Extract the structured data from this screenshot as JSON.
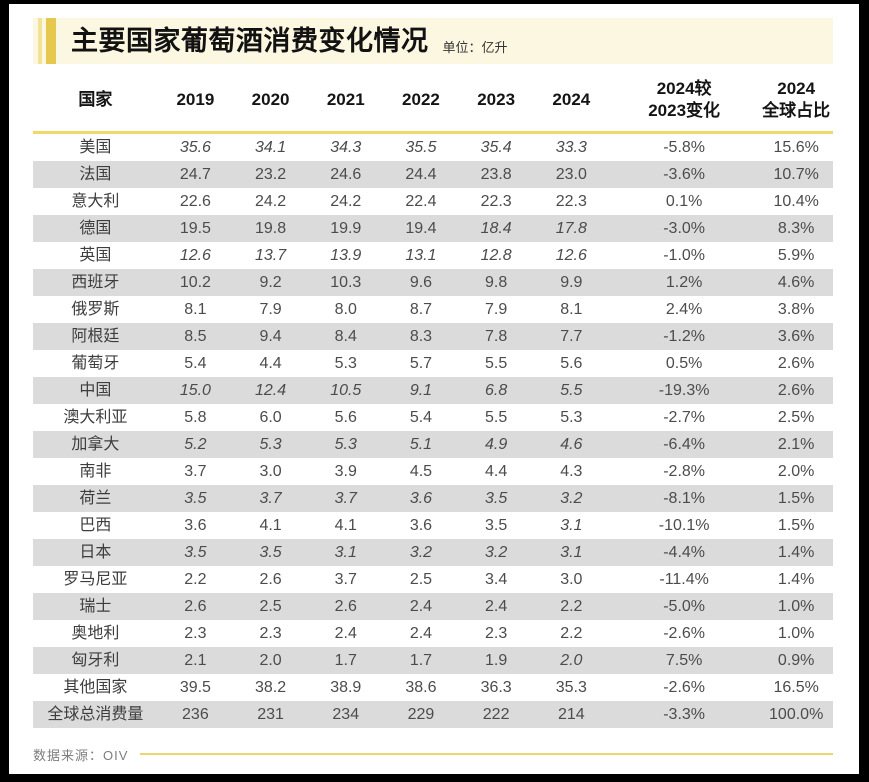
{
  "colors": {
    "frame": "#000000",
    "title_background": "#fcf7e1",
    "accent_gold": "#e7c84e",
    "accent_light": "#f2e296",
    "header_rule_yellow": "#f1d968",
    "row_stripe_gray": "#dbdbdb",
    "body_text": "#4c4c4c",
    "footer_rule_yellow": "#eed46c"
  },
  "chart_data": {
    "type": "table",
    "title": "主要国家葡萄酒消费变化情况",
    "unit": "单位：亿升",
    "source": "数据来源：OIV",
    "columns": [
      "国家",
      "2019",
      "2020",
      "2021",
      "2022",
      "2023",
      "2024",
      "2024较\n2023变化",
      "2024\n全球占比"
    ],
    "rows": [
      {
        "country": "美国",
        "values": [
          "35.6",
          "34.1",
          "34.3",
          "35.5",
          "35.4",
          "33.3"
        ],
        "italic": [
          true,
          true,
          true,
          true,
          true,
          true
        ],
        "change": "-5.8%",
        "share": "15.6%"
      },
      {
        "country": "法国",
        "values": [
          "24.7",
          "23.2",
          "24.6",
          "24.4",
          "23.8",
          "23.0"
        ],
        "italic": [
          false,
          false,
          false,
          false,
          false,
          false
        ],
        "change": "-3.6%",
        "share": "10.7%"
      },
      {
        "country": "意大利",
        "values": [
          "22.6",
          "24.2",
          "24.2",
          "22.4",
          "22.3",
          "22.3"
        ],
        "italic": [
          false,
          false,
          false,
          false,
          false,
          false
        ],
        "change": "0.1%",
        "share": "10.4%"
      },
      {
        "country": "德国",
        "values": [
          "19.5",
          "19.8",
          "19.9",
          "19.4",
          "18.4",
          "17.8"
        ],
        "italic": [
          false,
          false,
          false,
          false,
          true,
          true
        ],
        "change": "-3.0%",
        "share": "8.3%"
      },
      {
        "country": "英国",
        "values": [
          "12.6",
          "13.7",
          "13.9",
          "13.1",
          "12.8",
          "12.6"
        ],
        "italic": [
          true,
          true,
          true,
          true,
          true,
          true
        ],
        "change": "-1.0%",
        "share": "5.9%"
      },
      {
        "country": "西班牙",
        "values": [
          "10.2",
          "9.2",
          "10.3",
          "9.6",
          "9.8",
          "9.9"
        ],
        "italic": [
          false,
          false,
          false,
          false,
          false,
          false
        ],
        "change": "1.2%",
        "share": "4.6%"
      },
      {
        "country": "俄罗斯",
        "values": [
          "8.1",
          "7.9",
          "8.0",
          "8.7",
          "7.9",
          "8.1"
        ],
        "italic": [
          false,
          false,
          false,
          false,
          false,
          false
        ],
        "change": "2.4%",
        "share": "3.8%"
      },
      {
        "country": "阿根廷",
        "values": [
          "8.5",
          "9.4",
          "8.4",
          "8.3",
          "7.8",
          "7.7"
        ],
        "italic": [
          false,
          false,
          false,
          false,
          false,
          false
        ],
        "change": "-1.2%",
        "share": "3.6%"
      },
      {
        "country": "葡萄牙",
        "values": [
          "5.4",
          "4.4",
          "5.3",
          "5.7",
          "5.5",
          "5.6"
        ],
        "italic": [
          false,
          false,
          false,
          false,
          false,
          false
        ],
        "change": "0.5%",
        "share": "2.6%"
      },
      {
        "country": "中国",
        "values": [
          "15.0",
          "12.4",
          "10.5",
          "9.1",
          "6.8",
          "5.5"
        ],
        "italic": [
          true,
          true,
          true,
          true,
          true,
          true
        ],
        "change": "-19.3%",
        "share": "2.6%"
      },
      {
        "country": "澳大利亚",
        "values": [
          "5.8",
          "6.0",
          "5.6",
          "5.4",
          "5.5",
          "5.3"
        ],
        "italic": [
          false,
          false,
          false,
          false,
          false,
          false
        ],
        "change": "-2.7%",
        "share": "2.5%"
      },
      {
        "country": "加拿大",
        "values": [
          "5.2",
          "5.3",
          "5.3",
          "5.1",
          "4.9",
          "4.6"
        ],
        "italic": [
          true,
          true,
          true,
          true,
          true,
          true
        ],
        "change": "-6.4%",
        "share": "2.1%"
      },
      {
        "country": "南非",
        "values": [
          "3.7",
          "3.0",
          "3.9",
          "4.5",
          "4.4",
          "4.3"
        ],
        "italic": [
          false,
          false,
          false,
          false,
          false,
          false
        ],
        "change": "-2.8%",
        "share": "2.0%"
      },
      {
        "country": "荷兰",
        "values": [
          "3.5",
          "3.7",
          "3.7",
          "3.6",
          "3.5",
          "3.2"
        ],
        "italic": [
          true,
          true,
          true,
          true,
          true,
          true
        ],
        "change": "-8.1%",
        "share": "1.5%"
      },
      {
        "country": "巴西",
        "values": [
          "3.6",
          "4.1",
          "4.1",
          "3.6",
          "3.5",
          "3.1"
        ],
        "italic": [
          false,
          false,
          false,
          false,
          false,
          true
        ],
        "change": "-10.1%",
        "share": "1.5%"
      },
      {
        "country": "日本",
        "values": [
          "3.5",
          "3.5",
          "3.1",
          "3.2",
          "3.2",
          "3.1"
        ],
        "italic": [
          true,
          true,
          true,
          true,
          true,
          true
        ],
        "change": "-4.4%",
        "share": "1.4%"
      },
      {
        "country": "罗马尼亚",
        "values": [
          "2.2",
          "2.6",
          "3.7",
          "2.5",
          "3.4",
          "3.0"
        ],
        "italic": [
          false,
          false,
          false,
          false,
          false,
          false
        ],
        "change": "-11.4%",
        "share": "1.4%"
      },
      {
        "country": "瑞士",
        "values": [
          "2.6",
          "2.5",
          "2.6",
          "2.4",
          "2.4",
          "2.2"
        ],
        "italic": [
          false,
          false,
          false,
          false,
          false,
          false
        ],
        "change": "-5.0%",
        "share": "1.0%"
      },
      {
        "country": "奥地利",
        "values": [
          "2.3",
          "2.3",
          "2.4",
          "2.4",
          "2.3",
          "2.2"
        ],
        "italic": [
          false,
          false,
          false,
          false,
          false,
          false
        ],
        "change": "-2.6%",
        "share": "1.0%"
      },
      {
        "country": "匈牙利",
        "values": [
          "2.1",
          "2.0",
          "1.7",
          "1.7",
          "1.9",
          "2.0"
        ],
        "italic": [
          false,
          false,
          false,
          false,
          false,
          true
        ],
        "change": "7.5%",
        "share": "0.9%"
      },
      {
        "country": "其他国家",
        "values": [
          "39.5",
          "38.2",
          "38.9",
          "38.6",
          "36.3",
          "35.3"
        ],
        "italic": [
          false,
          false,
          false,
          false,
          false,
          false
        ],
        "change": "-2.6%",
        "share": "16.5%"
      },
      {
        "country": "全球总消费量",
        "values": [
          "236",
          "231",
          "234",
          "229",
          "222",
          "214"
        ],
        "italic": [
          false,
          false,
          false,
          false,
          false,
          false
        ],
        "change": "-3.3%",
        "share": "100.0%"
      }
    ]
  }
}
